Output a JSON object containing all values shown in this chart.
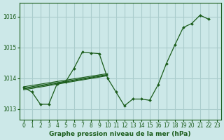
{
  "bg_color": "#cce8e8",
  "grid_color": "#aacccc",
  "line_color": "#1a5c1a",
  "ylabel_ticks": [
    1013,
    1014,
    1015,
    1016
  ],
  "xlim": [
    -0.5,
    23.5
  ],
  "ylim": [
    1012.65,
    1016.45
  ],
  "series": [
    {
      "x": [
        0,
        1,
        2,
        3,
        4,
        5,
        6,
        7,
        8,
        9,
        10,
        11,
        12,
        13,
        14,
        15,
        16,
        17,
        18,
        19,
        20,
        21,
        22
      ],
      "y": [
        1013.7,
        1013.55,
        1013.15,
        1013.15,
        1013.82,
        1013.88,
        1014.32,
        1014.85,
        1014.82,
        1014.8,
        1014.0,
        1013.55,
        1013.1,
        1013.32,
        1013.32,
        1013.28,
        1013.78,
        1014.48,
        1015.08,
        1015.65,
        1015.78,
        1016.05,
        1015.92
      ],
      "has_markers": true
    },
    {
      "x": [
        0,
        10
      ],
      "y": [
        1013.72,
        1014.15
      ],
      "has_markers": false
    },
    {
      "x": [
        0,
        10
      ],
      "y": [
        1013.68,
        1014.12
      ],
      "has_markers": false
    },
    {
      "x": [
        0,
        10
      ],
      "y": [
        1013.65,
        1014.1
      ],
      "has_markers": false
    },
    {
      "x": [
        0,
        10
      ],
      "y": [
        1013.62,
        1014.08
      ],
      "has_markers": false
    }
  ],
  "x_ticks": [
    0,
    1,
    2,
    3,
    4,
    5,
    6,
    7,
    8,
    9,
    10,
    11,
    12,
    13,
    14,
    15,
    16,
    17,
    18,
    19,
    20,
    21,
    22,
    23
  ],
  "xlabel": "Graphe pression niveau de la mer (hPa)",
  "tick_fontsize": 5.5,
  "xlabel_fontsize": 6.5
}
